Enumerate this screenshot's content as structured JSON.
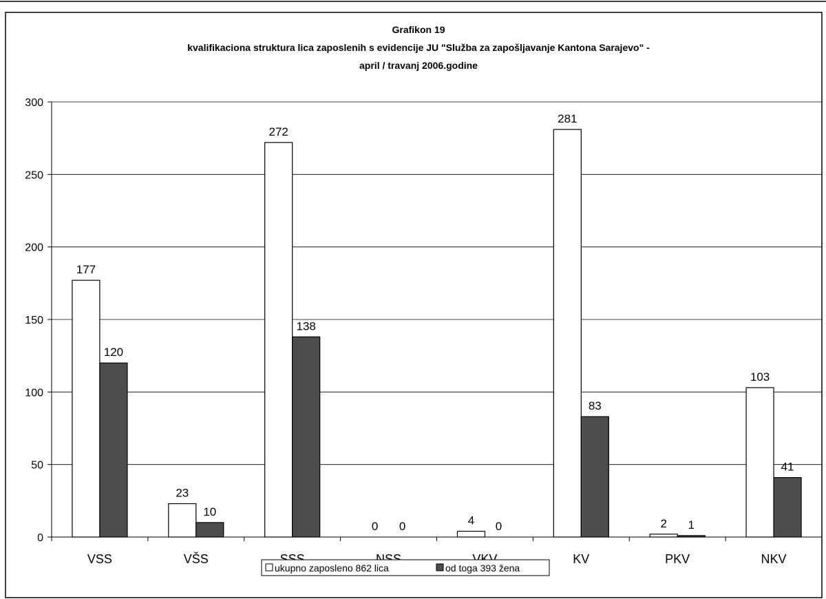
{
  "colors": {
    "series_total": "#ffffff",
    "series_women": "#4d4d4d",
    "bar_stroke": "#000000",
    "gridline": "#000000"
  },
  "chart_data": {
    "type": "bar",
    "title": [
      "Grafikon 19",
      "kvalifikaciona struktura lica zaposlenih s evidencije JU \"Služba za zapošljavanje Kantona Sarajevo\" -",
      "april / travanj 2006.godine"
    ],
    "categories": [
      "VSS",
      "VŠS",
      "SSS",
      "NSS",
      "VKV",
      "KV",
      "PKV",
      "NKV"
    ],
    "series": [
      {
        "name": "ukupno zaposleno 862 lica",
        "values": [
          177,
          23,
          272,
          0,
          4,
          281,
          2,
          103
        ]
      },
      {
        "name": "od toga 393 žena",
        "values": [
          120,
          10,
          138,
          0,
          0,
          83,
          1,
          41
        ]
      }
    ],
    "yticks": [
      "0",
      "50",
      "100",
      "150",
      "200",
      "250",
      "300"
    ],
    "ylim": [
      0,
      300
    ],
    "grid": true,
    "legend_position": "bottom"
  }
}
